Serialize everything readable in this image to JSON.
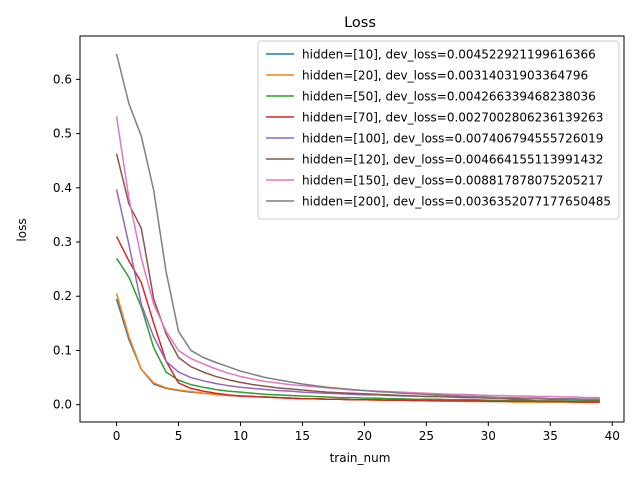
{
  "chart_data": {
    "type": "line",
    "title": "Loss",
    "xlabel": "train_num",
    "ylabel": "loss",
    "xlim": [
      -2.95,
      40.95
    ],
    "ylim": [
      -0.032,
      0.68
    ],
    "xticks": [
      0,
      5,
      10,
      15,
      20,
      25,
      30,
      35,
      40
    ],
    "xtick_labels": [
      "0",
      "5",
      "10",
      "15",
      "20",
      "25",
      "30",
      "35",
      "40"
    ],
    "yticks": [
      0.0,
      0.1,
      0.2,
      0.3,
      0.4,
      0.5,
      0.6
    ],
    "ytick_labels": [
      "0.0",
      "0.1",
      "0.2",
      "0.3",
      "0.4",
      "0.5",
      "0.6"
    ],
    "grid": false,
    "legend_position": "top-right",
    "x": [
      0,
      1,
      2,
      3,
      4,
      5,
      6,
      7,
      8,
      9,
      10,
      11,
      12,
      13,
      14,
      15,
      16,
      17,
      18,
      19,
      20,
      21,
      22,
      23,
      24,
      25,
      26,
      27,
      28,
      29,
      30,
      31,
      32,
      33,
      34,
      35,
      36,
      37,
      38,
      39
    ],
    "series": [
      {
        "name": "hidden=[10], dev_loss=0.004522921199616366",
        "color": "#1f77b4",
        "values": [
          0.195,
          0.12,
          0.065,
          0.038,
          0.03,
          0.026,
          0.023,
          0.021,
          0.019,
          0.017,
          0.016,
          0.015,
          0.014,
          0.013,
          0.012,
          0.011,
          0.011,
          0.01,
          0.01,
          0.009,
          0.009,
          0.009,
          0.008,
          0.008,
          0.008,
          0.007,
          0.007,
          0.007,
          0.007,
          0.006,
          0.006,
          0.006,
          0.006,
          0.006,
          0.005,
          0.005,
          0.005,
          0.005,
          0.005,
          0.005
        ]
      },
      {
        "name": "hidden=[20], dev_loss=0.00314031903364796",
        "color": "#ff7f0e",
        "values": [
          0.205,
          0.125,
          0.065,
          0.04,
          0.031,
          0.027,
          0.024,
          0.021,
          0.019,
          0.017,
          0.016,
          0.015,
          0.014,
          0.013,
          0.012,
          0.011,
          0.011,
          0.01,
          0.01,
          0.009,
          0.009,
          0.008,
          0.008,
          0.008,
          0.007,
          0.007,
          0.007,
          0.007,
          0.006,
          0.006,
          0.006,
          0.006,
          0.005,
          0.005,
          0.005,
          0.005,
          0.005,
          0.005,
          0.004,
          0.004
        ]
      },
      {
        "name": "hidden=[50], dev_loss=0.00426633946823803​6",
        "color": "#2ca02c",
        "values": [
          0.27,
          0.235,
          0.18,
          0.105,
          0.06,
          0.045,
          0.037,
          0.032,
          0.028,
          0.025,
          0.023,
          0.021,
          0.019,
          0.018,
          0.017,
          0.016,
          0.015,
          0.014,
          0.013,
          0.013,
          0.012,
          0.012,
          0.011,
          0.011,
          0.01,
          0.01,
          0.01,
          0.009,
          0.009,
          0.009,
          0.008,
          0.008,
          0.008,
          0.008,
          0.007,
          0.007,
          0.007,
          0.007,
          0.007,
          0.007
        ]
      },
      {
        "name": "hidden=[70], dev_loss=0.0027002806236139263",
        "color": "#d62728",
        "values": [
          0.31,
          0.265,
          0.225,
          0.15,
          0.08,
          0.04,
          0.03,
          0.025,
          0.021,
          0.018,
          0.016,
          0.015,
          0.014,
          0.013,
          0.012,
          0.011,
          0.011,
          0.01,
          0.01,
          0.009,
          0.009,
          0.009,
          0.008,
          0.008,
          0.008,
          0.008,
          0.007,
          0.007,
          0.007,
          0.007,
          0.006,
          0.006,
          0.006,
          0.006,
          0.006,
          0.006,
          0.006,
          0.005,
          0.005,
          0.005
        ]
      },
      {
        "name": "hidden=[100], dev_loss=0.007406794555726019",
        "color": "#9467bd",
        "values": [
          0.397,
          0.295,
          0.185,
          0.125,
          0.08,
          0.06,
          0.05,
          0.044,
          0.039,
          0.035,
          0.032,
          0.03,
          0.028,
          0.026,
          0.025,
          0.023,
          0.022,
          0.021,
          0.02,
          0.019,
          0.018,
          0.018,
          0.017,
          0.016,
          0.016,
          0.015,
          0.015,
          0.014,
          0.014,
          0.013,
          0.013,
          0.013,
          0.012,
          0.012,
          0.012,
          0.011,
          0.011,
          0.011,
          0.01,
          0.01
        ]
      },
      {
        "name": "hidden=[120], dev_loss=0.004664155113991432",
        "color": "#8c564b",
        "values": [
          0.463,
          0.37,
          0.325,
          0.195,
          0.13,
          0.087,
          0.07,
          0.06,
          0.052,
          0.046,
          0.041,
          0.037,
          0.034,
          0.031,
          0.029,
          0.027,
          0.025,
          0.023,
          0.022,
          0.021,
          0.02,
          0.019,
          0.018,
          0.017,
          0.016,
          0.015,
          0.015,
          0.014,
          0.013,
          0.013,
          0.012,
          0.012,
          0.011,
          0.011,
          0.011,
          0.01,
          0.01,
          0.01,
          0.009,
          0.009
        ]
      },
      {
        "name": "hidden=[150], dev_loss=0.008817878075205217",
        "color": "#e377c2",
        "values": [
          0.532,
          0.38,
          0.27,
          0.185,
          0.135,
          0.1,
          0.085,
          0.075,
          0.066,
          0.058,
          0.052,
          0.047,
          0.043,
          0.04,
          0.037,
          0.035,
          0.033,
          0.031,
          0.029,
          0.027,
          0.026,
          0.025,
          0.024,
          0.023,
          0.022,
          0.021,
          0.02,
          0.019,
          0.019,
          0.018,
          0.017,
          0.017,
          0.016,
          0.016,
          0.015,
          0.015,
          0.014,
          0.014,
          0.013,
          0.013
        ]
      },
      {
        "name": "hidden=[200], dev_loss=0.0036352077177650485",
        "color": "#7f7f7f",
        "values": [
          0.647,
          0.555,
          0.495,
          0.395,
          0.245,
          0.135,
          0.1,
          0.087,
          0.078,
          0.07,
          0.062,
          0.056,
          0.05,
          0.046,
          0.042,
          0.038,
          0.035,
          0.032,
          0.03,
          0.028,
          0.026,
          0.024,
          0.023,
          0.021,
          0.02,
          0.019,
          0.018,
          0.017,
          0.016,
          0.015,
          0.014,
          0.013,
          0.013,
          0.012,
          0.012,
          0.011,
          0.011,
          0.01,
          0.01,
          0.01
        ]
      }
    ]
  }
}
